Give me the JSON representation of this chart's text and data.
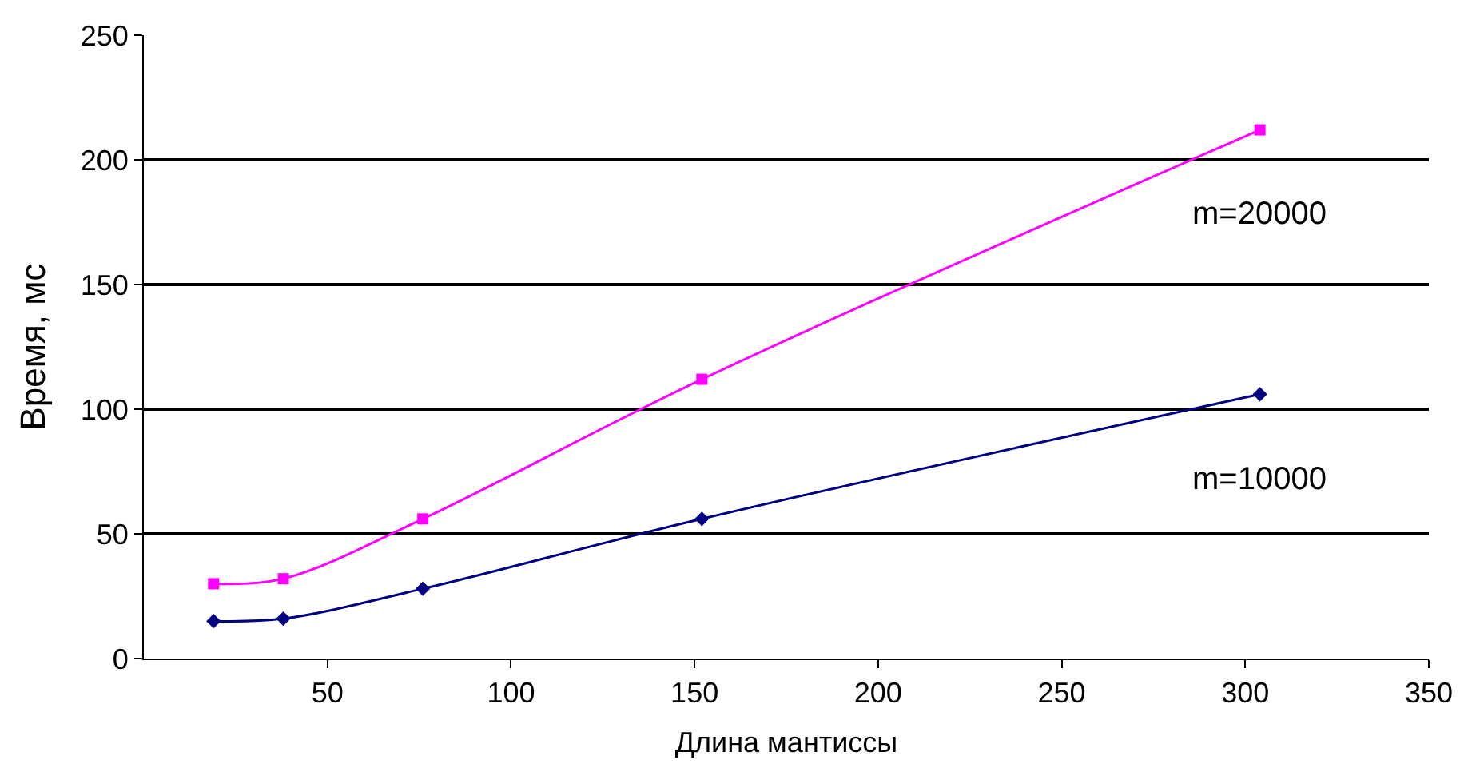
{
  "chart_data": {
    "type": "line",
    "xlabel": "Длина мантиссы",
    "ylabel": "Время, мс",
    "x": [
      19,
      38,
      76,
      152,
      304
    ],
    "series": [
      {
        "name": "m=20000",
        "color": "#ff00ff",
        "marker": "square",
        "values": [
          30,
          32,
          56,
          112,
          212
        ]
      },
      {
        "name": "m=10000",
        "color": "#000080",
        "marker": "diamond",
        "values": [
          15,
          16,
          28,
          56,
          106
        ]
      }
    ],
    "xlim": [
      0,
      350
    ],
    "xticks": [
      50,
      100,
      150,
      200,
      250,
      300,
      350
    ],
    "ylim": [
      0,
      250
    ],
    "yticks": [
      0,
      50,
      100,
      150,
      200,
      250
    ],
    "grid": "y",
    "legend": false
  }
}
